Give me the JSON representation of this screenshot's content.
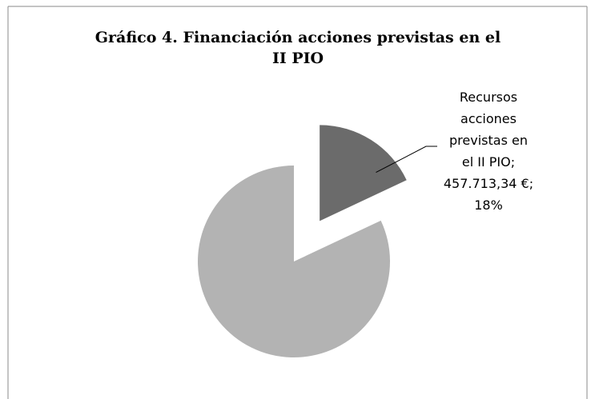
{
  "chart_data": {
    "type": "pie",
    "title": "Gráfico 4. Financiación acciones previstas en el II PIO",
    "values": [
      18,
      82
    ],
    "value_labels": [
      "Recursos acciones previstas en el II PIO; 457.713,34 €; 18%",
      null
    ],
    "colors": [
      "#6b6b6b",
      "#b3b3b3"
    ],
    "exploded": [
      true,
      false
    ]
  }
}
